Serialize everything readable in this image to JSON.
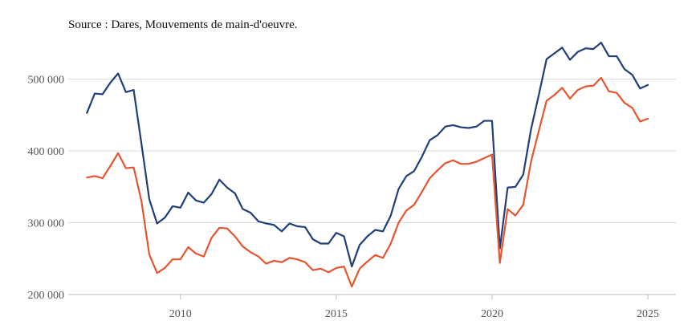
{
  "source_note": "Source : Dares, Mouvements de main-d'oeuvre.",
  "chart_data": {
    "type": "line",
    "title": "",
    "xlabel": "",
    "ylabel": "",
    "xlim": [
      2006.4,
      2025.9
    ],
    "ylim": [
      200000,
      560000
    ],
    "grid": true,
    "x_ticks": [
      2010,
      2015,
      2020,
      2025
    ],
    "x_tick_labels": [
      "2010",
      "2015",
      "2020",
      "2025"
    ],
    "y_ticks": [
      200000,
      300000,
      400000,
      500000
    ],
    "y_tick_labels": [
      "200 000",
      "300 000",
      "400 000",
      "500 000"
    ],
    "colors": {
      "series_1": "#1f3f7a",
      "series_2": "#e5552f"
    },
    "series": [
      {
        "values": [
          [
            2007.0,
            453000
          ],
          [
            2007.25,
            480000
          ],
          [
            2007.5,
            479000
          ],
          [
            2007.75,
            495000
          ],
          [
            2008.0,
            508000
          ],
          [
            2008.25,
            482000
          ],
          [
            2008.5,
            485000
          ],
          [
            2008.75,
            410000
          ],
          [
            2009.0,
            333000
          ],
          [
            2009.25,
            299000
          ],
          [
            2009.5,
            307000
          ],
          [
            2009.75,
            323000
          ],
          [
            2010.0,
            321000
          ],
          [
            2010.25,
            342000
          ],
          [
            2010.5,
            331000
          ],
          [
            2010.75,
            328000
          ],
          [
            2011.0,
            340000
          ],
          [
            2011.25,
            360000
          ],
          [
            2011.5,
            349000
          ],
          [
            2011.75,
            341000
          ],
          [
            2012.0,
            319000
          ],
          [
            2012.25,
            314000
          ],
          [
            2012.5,
            302000
          ],
          [
            2012.75,
            299000
          ],
          [
            2013.0,
            297000
          ],
          [
            2013.25,
            288000
          ],
          [
            2013.5,
            299000
          ],
          [
            2013.75,
            295000
          ],
          [
            2014.0,
            294000
          ],
          [
            2014.25,
            277000
          ],
          [
            2014.5,
            271000
          ],
          [
            2014.75,
            271000
          ],
          [
            2015.0,
            286000
          ],
          [
            2015.25,
            281000
          ],
          [
            2015.5,
            239000
          ],
          [
            2015.75,
            269000
          ],
          [
            2016.0,
            281000
          ],
          [
            2016.25,
            290000
          ],
          [
            2016.5,
            288000
          ],
          [
            2016.75,
            310000
          ],
          [
            2017.0,
            347000
          ],
          [
            2017.25,
            365000
          ],
          [
            2017.5,
            372000
          ],
          [
            2017.75,
            392000
          ],
          [
            2018.0,
            415000
          ],
          [
            2018.25,
            422000
          ],
          [
            2018.5,
            434000
          ],
          [
            2018.75,
            436000
          ],
          [
            2019.0,
            433000
          ],
          [
            2019.25,
            432000
          ],
          [
            2019.5,
            434000
          ],
          [
            2019.75,
            442000
          ],
          [
            2020.0,
            442000
          ],
          [
            2020.25,
            264000
          ],
          [
            2020.5,
            349000
          ],
          [
            2020.75,
            350000
          ],
          [
            2021.0,
            367000
          ],
          [
            2021.25,
            430000
          ],
          [
            2021.5,
            478000
          ],
          [
            2021.75,
            528000
          ],
          [
            2022.0,
            536000
          ],
          [
            2022.25,
            544000
          ],
          [
            2022.5,
            527000
          ],
          [
            2022.75,
            538000
          ],
          [
            2023.0,
            543000
          ],
          [
            2023.25,
            542000
          ],
          [
            2023.5,
            551000
          ],
          [
            2023.75,
            532000
          ],
          [
            2024.0,
            532000
          ],
          [
            2024.25,
            514000
          ],
          [
            2024.5,
            506000
          ],
          [
            2024.75,
            487000
          ],
          [
            2025.0,
            492000
          ]
        ]
      },
      {
        "values": [
          [
            2007.0,
            363000
          ],
          [
            2007.25,
            365000
          ],
          [
            2007.5,
            362000
          ],
          [
            2007.75,
            379000
          ],
          [
            2008.0,
            397000
          ],
          [
            2008.25,
            376000
          ],
          [
            2008.5,
            377000
          ],
          [
            2008.75,
            330000
          ],
          [
            2009.0,
            256000
          ],
          [
            2009.25,
            230000
          ],
          [
            2009.5,
            237000
          ],
          [
            2009.75,
            249000
          ],
          [
            2010.0,
            249000
          ],
          [
            2010.25,
            266000
          ],
          [
            2010.5,
            257000
          ],
          [
            2010.75,
            253000
          ],
          [
            2011.0,
            279000
          ],
          [
            2011.25,
            293000
          ],
          [
            2011.5,
            292000
          ],
          [
            2011.75,
            281000
          ],
          [
            2012.0,
            267000
          ],
          [
            2012.25,
            259000
          ],
          [
            2012.5,
            253000
          ],
          [
            2012.75,
            243000
          ],
          [
            2013.0,
            247000
          ],
          [
            2013.25,
            245000
          ],
          [
            2013.5,
            251000
          ],
          [
            2013.75,
            249000
          ],
          [
            2014.0,
            245000
          ],
          [
            2014.25,
            234000
          ],
          [
            2014.5,
            236000
          ],
          [
            2014.75,
            231000
          ],
          [
            2015.0,
            237000
          ],
          [
            2015.25,
            239000
          ],
          [
            2015.5,
            211000
          ],
          [
            2015.75,
            236000
          ],
          [
            2016.0,
            246000
          ],
          [
            2016.25,
            255000
          ],
          [
            2016.5,
            251000
          ],
          [
            2016.75,
            271000
          ],
          [
            2017.0,
            300000
          ],
          [
            2017.25,
            317000
          ],
          [
            2017.5,
            325000
          ],
          [
            2017.75,
            343000
          ],
          [
            2018.0,
            362000
          ],
          [
            2018.25,
            373000
          ],
          [
            2018.5,
            383000
          ],
          [
            2018.75,
            387000
          ],
          [
            2019.0,
            382000
          ],
          [
            2019.25,
            382000
          ],
          [
            2019.5,
            385000
          ],
          [
            2019.75,
            390000
          ],
          [
            2020.0,
            395000
          ],
          [
            2020.25,
            244000
          ],
          [
            2020.5,
            319000
          ],
          [
            2020.75,
            310000
          ],
          [
            2021.0,
            325000
          ],
          [
            2021.25,
            385000
          ],
          [
            2021.5,
            428000
          ],
          [
            2021.75,
            470000
          ],
          [
            2022.0,
            478000
          ],
          [
            2022.25,
            488000
          ],
          [
            2022.5,
            473000
          ],
          [
            2022.75,
            485000
          ],
          [
            2023.0,
            490000
          ],
          [
            2023.25,
            491000
          ],
          [
            2023.5,
            502000
          ],
          [
            2023.75,
            483000
          ],
          [
            2024.0,
            481000
          ],
          [
            2024.25,
            467000
          ],
          [
            2024.5,
            460000
          ],
          [
            2024.75,
            441000
          ],
          [
            2025.0,
            445000
          ]
        ]
      }
    ]
  }
}
